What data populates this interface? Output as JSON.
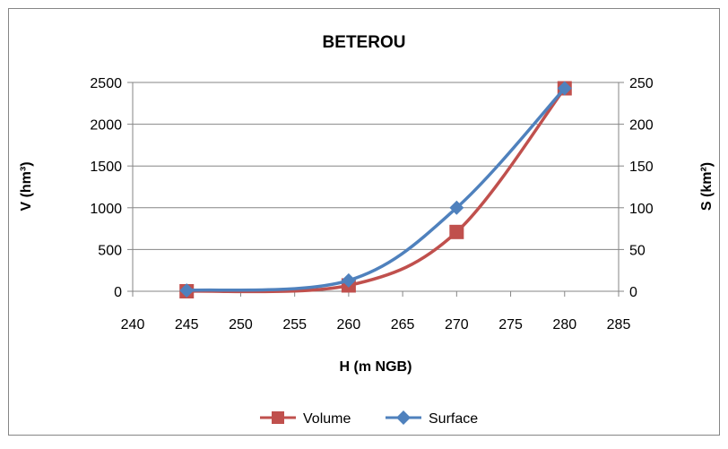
{
  "chart_data": {
    "type": "line",
    "title": "BETEROU",
    "xlabel": "H (m NGB)",
    "ylabel": "V (hm³)",
    "y2label": "S (km²)",
    "xlim": [
      240,
      285
    ],
    "ylim": [
      0,
      2500
    ],
    "y2lim": [
      0,
      250
    ],
    "x_ticks": [
      "240",
      "245",
      "250",
      "255",
      "260",
      "265",
      "270",
      "275",
      "280",
      "285"
    ],
    "y_ticks": [
      "0",
      "500",
      "1000",
      "1500",
      "2000",
      "2500"
    ],
    "y2_ticks": [
      "0",
      "50",
      "100",
      "150",
      "200",
      "250"
    ],
    "grid": true,
    "legend_position": "bottom",
    "series": [
      {
        "name": "Volume",
        "axis": "left",
        "color": "#c0504d",
        "marker": "square",
        "x": [
          245,
          260,
          270,
          280
        ],
        "y": [
          0,
          70,
          710,
          2430
        ]
      },
      {
        "name": "Surface",
        "axis": "right",
        "color": "#4f81bd",
        "marker": "diamond",
        "x": [
          245,
          260,
          270,
          280
        ],
        "y": [
          1,
          13,
          100,
          243
        ]
      }
    ]
  }
}
